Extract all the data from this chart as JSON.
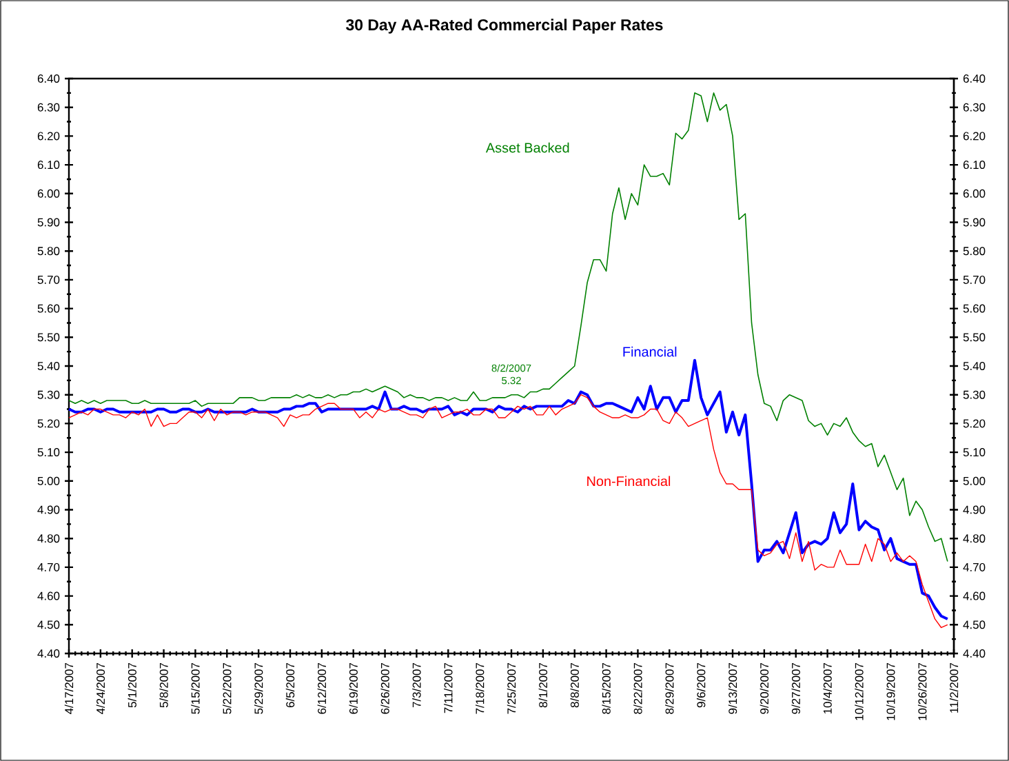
{
  "chart_data": {
    "type": "line",
    "title": "30 Day AA-Rated Commercial Paper Rates",
    "categories": [
      "4/17/2007",
      null,
      null,
      null,
      null,
      "4/24/2007",
      null,
      null,
      null,
      null,
      "5/1/2007",
      null,
      null,
      null,
      null,
      "5/8/2007",
      null,
      null,
      null,
      null,
      "5/15/2007",
      null,
      null,
      null,
      null,
      "5/22/2007",
      null,
      null,
      null,
      null,
      "5/29/2007",
      null,
      null,
      null,
      null,
      "6/5/2007",
      null,
      null,
      null,
      null,
      "6/12/2007",
      null,
      null,
      null,
      null,
      "6/19/2007",
      null,
      null,
      null,
      null,
      "6/26/2007",
      null,
      null,
      null,
      null,
      "7/3/2007",
      null,
      null,
      null,
      null,
      "7/11/2007",
      null,
      null,
      null,
      null,
      "7/18/2007",
      null,
      null,
      null,
      null,
      "7/25/2007",
      null,
      null,
      null,
      null,
      "8/1/2007",
      null,
      null,
      null,
      null,
      "8/8/2007",
      null,
      null,
      null,
      null,
      "8/15/2007",
      null,
      null,
      null,
      null,
      "8/22/2007",
      null,
      null,
      null,
      null,
      "8/29/2007",
      null,
      null,
      null,
      null,
      "9/6/2007",
      null,
      null,
      null,
      null,
      "9/13/2007",
      null,
      null,
      null,
      null,
      "9/20/2007",
      null,
      null,
      null,
      null,
      "9/27/2007",
      null,
      null,
      null,
      null,
      "10/4/2007",
      null,
      null,
      null,
      null,
      "10/12/2007",
      null,
      null,
      null,
      null,
      "10/19/2007",
      null,
      null,
      null,
      null,
      "10/26/2007",
      null,
      null,
      null,
      null,
      "11/2/2007"
    ],
    "series": [
      {
        "name": "Asset Backed",
        "color": "#008000",
        "values": [
          5.28,
          5.27,
          5.28,
          5.27,
          5.28,
          5.27,
          5.28,
          5.28,
          5.28,
          5.28,
          5.27,
          5.27,
          5.28,
          5.27,
          5.27,
          5.27,
          5.27,
          5.27,
          5.27,
          5.27,
          5.28,
          5.26,
          5.27,
          5.27,
          5.27,
          5.27,
          5.27,
          5.29,
          5.29,
          5.29,
          5.28,
          5.28,
          5.29,
          5.29,
          5.29,
          5.29,
          5.3,
          5.29,
          5.3,
          5.29,
          5.29,
          5.3,
          5.29,
          5.3,
          5.3,
          5.31,
          5.31,
          5.32,
          5.31,
          5.32,
          5.33,
          5.32,
          5.31,
          5.29,
          5.3,
          5.29,
          5.29,
          5.28,
          5.29,
          5.29,
          5.28,
          5.29,
          5.28,
          5.28,
          5.31,
          5.28,
          5.28,
          5.29,
          5.29,
          5.29,
          5.3,
          5.3,
          5.29,
          5.31,
          5.31,
          5.32,
          5.32,
          5.34,
          5.36,
          5.38,
          5.4,
          5.54,
          5.69,
          5.77,
          5.77,
          5.73,
          5.93,
          6.02,
          5.91,
          6.0,
          5.96,
          6.1,
          6.06,
          6.06,
          6.07,
          6.03,
          6.21,
          6.19,
          6.22,
          6.35,
          6.34,
          6.25,
          6.35,
          6.29,
          6.31,
          6.2,
          5.91,
          5.93,
          5.55,
          5.37,
          5.27,
          5.26,
          5.21,
          5.28,
          5.3,
          5.29,
          5.28,
          5.21,
          5.19,
          5.2,
          5.16,
          5.2,
          5.19,
          5.22,
          5.17,
          5.14,
          5.12,
          5.13,
          5.05,
          5.09,
          5.03,
          4.97,
          5.01,
          4.88,
          4.93,
          4.9,
          4.84,
          4.79,
          4.8,
          4.72,
          null
        ]
      },
      {
        "name": "Financial",
        "color": "#0000ff",
        "values": [
          5.25,
          5.24,
          5.24,
          5.25,
          5.25,
          5.24,
          5.25,
          5.25,
          5.24,
          5.24,
          5.24,
          5.24,
          5.24,
          5.24,
          5.25,
          5.25,
          5.24,
          5.24,
          5.25,
          5.25,
          5.24,
          5.24,
          5.25,
          5.24,
          5.24,
          5.24,
          5.24,
          5.24,
          5.24,
          5.25,
          5.24,
          5.24,
          5.24,
          5.24,
          5.25,
          5.25,
          5.26,
          5.26,
          5.27,
          5.27,
          5.24,
          5.25,
          5.25,
          5.25,
          5.25,
          5.25,
          5.25,
          5.25,
          5.26,
          5.25,
          5.31,
          5.25,
          5.25,
          5.26,
          5.25,
          5.25,
          5.24,
          5.25,
          5.25,
          5.25,
          5.26,
          5.23,
          5.24,
          5.23,
          5.25,
          5.25,
          5.25,
          5.24,
          5.26,
          5.25,
          5.25,
          5.24,
          5.26,
          5.25,
          5.26,
          5.26,
          5.26,
          5.26,
          5.26,
          5.28,
          5.27,
          5.31,
          5.3,
          5.26,
          5.26,
          5.27,
          5.27,
          5.26,
          5.25,
          5.24,
          5.29,
          5.25,
          5.33,
          5.25,
          5.29,
          5.29,
          5.24,
          5.28,
          5.28,
          5.42,
          5.29,
          5.23,
          5.27,
          5.31,
          5.17,
          5.24,
          5.16,
          5.23,
          4.99,
          4.72,
          4.76,
          4.76,
          4.79,
          4.75,
          4.82,
          4.89,
          4.75,
          4.78,
          4.79,
          4.78,
          4.8,
          4.89,
          4.82,
          4.85,
          4.99,
          4.83,
          4.86,
          4.84,
          4.83,
          4.76,
          4.8,
          4.73,
          4.72,
          4.71,
          4.71,
          4.61,
          4.6,
          4.56,
          4.53,
          4.52,
          null
        ]
      },
      {
        "name": "Non-Financial",
        "color": "#ff0000",
        "values": [
          5.22,
          5.23,
          5.24,
          5.23,
          5.25,
          5.25,
          5.24,
          5.23,
          5.23,
          5.22,
          5.24,
          5.23,
          5.25,
          5.19,
          5.23,
          5.19,
          5.2,
          5.2,
          5.22,
          5.24,
          5.24,
          5.22,
          5.25,
          5.21,
          5.25,
          5.23,
          5.24,
          5.24,
          5.23,
          5.24,
          5.24,
          5.24,
          5.23,
          5.22,
          5.19,
          5.23,
          5.22,
          5.23,
          5.23,
          5.25,
          5.26,
          5.27,
          5.27,
          5.25,
          5.25,
          5.25,
          5.22,
          5.24,
          5.22,
          5.25,
          5.24,
          5.25,
          5.25,
          5.24,
          5.23,
          5.23,
          5.22,
          5.25,
          5.26,
          5.22,
          5.23,
          5.24,
          5.24,
          5.25,
          5.23,
          5.23,
          5.25,
          5.25,
          5.22,
          5.22,
          5.24,
          5.26,
          5.25,
          5.26,
          5.23,
          5.23,
          5.26,
          5.23,
          5.25,
          5.26,
          5.27,
          5.3,
          5.29,
          5.26,
          5.24,
          5.23,
          5.22,
          5.22,
          5.23,
          5.22,
          5.22,
          5.23,
          5.25,
          5.25,
          5.21,
          5.2,
          5.24,
          5.22,
          5.19,
          5.2,
          5.21,
          5.22,
          5.11,
          5.03,
          4.99,
          4.99,
          4.97,
          4.97,
          4.97,
          4.76,
          4.74,
          4.75,
          4.78,
          4.79,
          4.73,
          4.82,
          4.72,
          4.79,
          4.69,
          4.71,
          4.7,
          4.7,
          4.76,
          4.71,
          4.71,
          4.71,
          4.78,
          4.72,
          4.8,
          4.78,
          4.72,
          4.75,
          4.72,
          4.74,
          4.72,
          4.64,
          4.58,
          4.52,
          4.49,
          4.5,
          null
        ]
      }
    ],
    "ylim": [
      4.4,
      6.4
    ],
    "yticks": [
      {
        "value": 4.4,
        "label": "4.40"
      },
      {
        "value": 4.5,
        "label": "4.50"
      },
      {
        "value": 4.6,
        "label": "4.60"
      },
      {
        "value": 4.7,
        "label": "4.70"
      },
      {
        "value": 4.8,
        "label": "4.80"
      },
      {
        "value": 4.9,
        "label": "4.90"
      },
      {
        "value": 5.0,
        "label": "5.00"
      },
      {
        "value": 5.1,
        "label": "5.10"
      },
      {
        "value": 5.2,
        "label": "5.20"
      },
      {
        "value": 5.3,
        "label": "5.30"
      },
      {
        "value": 5.4,
        "label": "5.40"
      },
      {
        "value": 5.5,
        "label": "5.50"
      },
      {
        "value": 5.6,
        "label": "5.60"
      },
      {
        "value": 5.7,
        "label": "5.70"
      },
      {
        "value": 5.8,
        "label": "5.80"
      },
      {
        "value": 5.9,
        "label": "5.90"
      },
      {
        "value": 6.0,
        "label": "6.00"
      },
      {
        "value": 6.1,
        "label": "6.10"
      },
      {
        "value": 6.2,
        "label": "6.20"
      },
      {
        "value": 6.3,
        "label": "6.30"
      },
      {
        "value": 6.4,
        "label": "6.40"
      }
    ],
    "y2lim": [
      4.4,
      6.4
    ],
    "y2ticks": [
      {
        "value": 4.4,
        "label": "4.40"
      },
      {
        "value": 4.5,
        "label": "4.50"
      },
      {
        "value": 4.6,
        "label": "4.60"
      },
      {
        "value": 4.7,
        "label": "4.70"
      },
      {
        "value": 4.8,
        "label": "4.80"
      },
      {
        "value": 4.9,
        "label": "4.90"
      },
      {
        "value": 5.0,
        "label": "5.00"
      },
      {
        "value": 5.1,
        "label": "5.10"
      },
      {
        "value": 5.2,
        "label": "5.20"
      },
      {
        "value": 5.3,
        "label": "5.30"
      },
      {
        "value": 5.4,
        "label": "5.40"
      },
      {
        "value": 5.5,
        "label": "5.50"
      },
      {
        "value": 5.6,
        "label": "5.60"
      },
      {
        "value": 5.7,
        "label": "5.70"
      },
      {
        "value": 5.8,
        "label": "5.80"
      },
      {
        "value": 5.9,
        "label": "5.90"
      },
      {
        "value": 6.0,
        "label": "6.00"
      },
      {
        "value": 6.1,
        "label": "6.10"
      },
      {
        "value": 6.2,
        "label": "6.20"
      },
      {
        "value": 6.3,
        "label": "6.30"
      },
      {
        "value": 6.4,
        "label": "6.40"
      }
    ],
    "annotations": [
      {
        "text": "8/2/2007 5.32",
        "y": 5.32
      }
    ],
    "marker": "none",
    "line_style": "solid",
    "grid": false,
    "legend": false
  }
}
